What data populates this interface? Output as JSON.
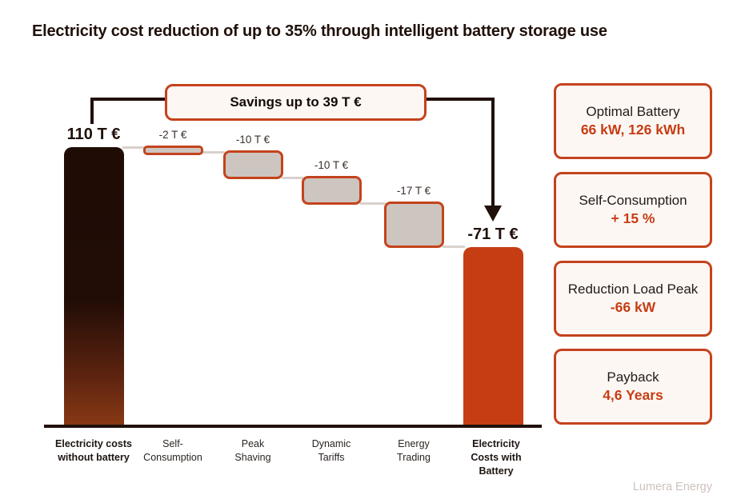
{
  "header": {
    "title": "Electricity cost reduction of up to 35% through intelligent battery storage use"
  },
  "chart_data": {
    "type": "waterfall",
    "title": "Electricity cost reduction of up to 35% through intelligent battery storage use",
    "categories": [
      [
        "Electricity costs",
        "without battery"
      ],
      [
        "Self-",
        "Consumption"
      ],
      [
        "Peak",
        "Shaving"
      ],
      [
        "Dynamic",
        "Tariffs"
      ],
      [
        "Energy",
        "Trading"
      ],
      [
        "Electricity",
        "Costs with",
        "Battery"
      ]
    ],
    "values": [
      110,
      -2,
      -10,
      -10,
      -17,
      -71
    ],
    "value_labels": [
      "110 T €",
      "-2 T €",
      "-10 T €",
      "-10 T €",
      "-17 T €",
      "-71 T €"
    ],
    "bar_roles": [
      "start",
      "delta",
      "delta",
      "delta",
      "delta",
      "end"
    ],
    "bold_category_indexes": [
      0,
      5
    ],
    "annotation": "Savings up to 39 T €",
    "unit": "T €",
    "ylim": [
      0,
      110
    ],
    "xlabel": "",
    "ylabel": "",
    "grid": false,
    "legend": "none",
    "axis_lines": "baseline-only"
  },
  "side_panel": {
    "boxes": [
      {
        "title": "Optimal Battery",
        "value": "66 kW, 126 kWh"
      },
      {
        "title": "Self-Consumption",
        "value": "+ 15 %"
      },
      {
        "title": "Reduction Load Peak",
        "value": "-66 kW"
      },
      {
        "title": "Payback",
        "value": "4,6 Years"
      }
    ]
  },
  "footer": {
    "watermark": "Lumera Energy"
  },
  "colors": {
    "accent": "#c4431c",
    "final_bar": "#c63d14",
    "bar_fill": "#cdc5bf",
    "dark": "#20100a",
    "box_bg": "#fdf7f4",
    "connector": "#d9d1cb",
    "watermark": "#cdc2bd"
  }
}
